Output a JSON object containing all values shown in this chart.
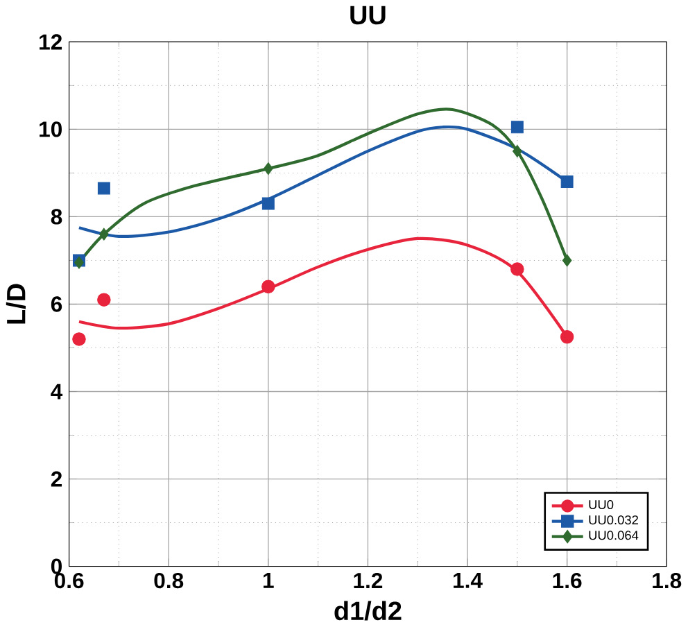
{
  "chart_data": {
    "type": "scatter",
    "title": "UU",
    "xlabel": "d1/d2",
    "ylabel": "L/D",
    "xlim": [
      0.6,
      1.8
    ],
    "ylim": [
      0,
      12
    ],
    "xticks": [
      0.6,
      0.8,
      1,
      1.2,
      1.4,
      1.6,
      1.8
    ],
    "yticks": [
      0,
      2,
      4,
      6,
      8,
      10,
      12
    ],
    "grid": true,
    "legend": "bottom right",
    "series": [
      {
        "name": "UU0",
        "color": "#e8243c",
        "marker": "circle",
        "x": [
          0.62,
          0.67,
          1.0,
          1.5,
          1.6
        ],
        "values": [
          5.2,
          6.1,
          6.4,
          6.8,
          5.25
        ]
      },
      {
        "name": "UU0.032",
        "color": "#1c5aa8",
        "marker": "square",
        "x": [
          0.62,
          0.67,
          1.0,
          1.5,
          1.6
        ],
        "values": [
          7.0,
          8.65,
          8.3,
          10.05,
          8.8
        ]
      },
      {
        "name": "UU0.064",
        "color": "#2f6b2f",
        "marker": "diamond",
        "x": [
          0.62,
          0.67,
          1.0,
          1.5,
          1.6
        ],
        "values": [
          6.95,
          7.6,
          9.1,
          9.5,
          7.0
        ]
      },
      {
        "type": "line",
        "color": "#e8243c",
        "marker": "none",
        "x": [
          0.62,
          0.7,
          0.8,
          0.9,
          1.0,
          1.1,
          1.2,
          1.3,
          1.4,
          1.5,
          1.6
        ],
        "values": [
          5.6,
          5.45,
          5.55,
          5.9,
          6.35,
          6.85,
          7.25,
          7.5,
          7.35,
          6.75,
          5.25
        ]
      },
      {
        "type": "line",
        "color": "#1c5aa8",
        "marker": "none",
        "x": [
          0.62,
          0.7,
          0.8,
          0.9,
          1.0,
          1.1,
          1.2,
          1.3,
          1.35,
          1.4,
          1.5,
          1.6
        ],
        "values": [
          7.75,
          7.55,
          7.65,
          7.95,
          8.4,
          8.95,
          9.5,
          9.95,
          10.05,
          10.0,
          9.55,
          8.8
        ]
      },
      {
        "type": "line",
        "color": "#2f6b2f",
        "marker": "none",
        "x": [
          0.62,
          0.67,
          0.75,
          0.85,
          1.0,
          1.1,
          1.2,
          1.3,
          1.37,
          1.45,
          1.5,
          1.55,
          1.6
        ],
        "values": [
          6.95,
          7.6,
          8.3,
          8.7,
          9.1,
          9.4,
          9.9,
          10.35,
          10.45,
          10.1,
          9.5,
          8.4,
          7.0
        ]
      }
    ]
  }
}
